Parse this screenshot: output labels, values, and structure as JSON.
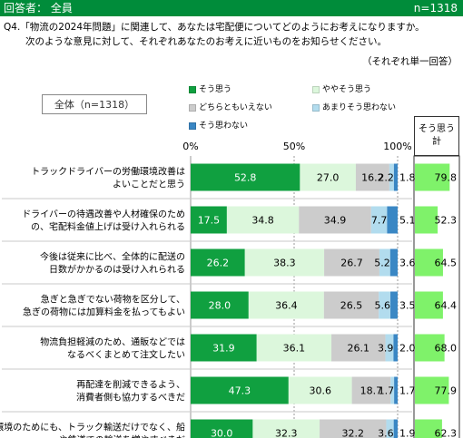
{
  "header": {
    "respondent": "回答者： 全員",
    "n": "n=1318"
  },
  "question": {
    "line1": "Q4.「物流の2024年問題」に関連して、あなたは宅配便についてどのようにお考えになりますか。",
    "line2": "次のような意見に対して、それぞれあなたのお考えに近いものをお知らせください。",
    "note": "（それぞれ単一回答）"
  },
  "base_label": "全体（n=1318）",
  "sum_header": [
    "そう思う",
    "計"
  ],
  "colors": {
    "s1": "#10a040",
    "s2": "#dcf7dc",
    "s3": "#cccccc",
    "s4": "#b2dcee",
    "s5": "#3a87c4",
    "sum": "#7ff26a",
    "header": "#008c3a"
  },
  "chart_data": {
    "type": "bar",
    "stacked": true,
    "orientation": "horizontal",
    "xlim": [
      0,
      100
    ],
    "x_ticks": [
      "0%",
      "50%",
      "100%"
    ],
    "categories": [
      [
        "トラックドライバーの労働環境改善は",
        "よいことだと思う"
      ],
      [
        "ドライバーの待遇改善や人材確保のため",
        "の、宅配料金値上げは受け入れられる"
      ],
      [
        "今後は従来に比べ、全体的に配送の",
        "日数がかかるのは受け入れられる"
      ],
      [
        "急ぎと急ぎでない荷物を区分して、",
        "急ぎの荷物には加算料金を払ってもよい"
      ],
      [
        "物流負担軽減のため、通販などでは",
        "なるべくまとめて注文したい"
      ],
      [
        "再配達を削減できるよう、",
        "消費者側も協力するべきだ"
      ],
      [
        "環境のためにも、トラック輸送だけでなく、船",
        "や鉄道での輸送を増やすべきだ"
      ]
    ],
    "series": [
      {
        "name": "そう思う",
        "values": [
          52.8,
          17.5,
          26.2,
          28.0,
          31.9,
          47.3,
          30.0
        ]
      },
      {
        "name": "ややそう思う",
        "values": [
          27.0,
          34.8,
          38.3,
          36.4,
          36.1,
          30.6,
          32.3
        ]
      },
      {
        "name": "どちらともいえない",
        "values": [
          16.2,
          34.9,
          26.7,
          26.5,
          26.1,
          18.7,
          32.2
        ]
      },
      {
        "name": "あまりそう思わない",
        "values": [
          2.2,
          7.7,
          5.2,
          5.6,
          3.9,
          1.7,
          3.6
        ]
      },
      {
        "name": "そう思わない",
        "values": [
          1.8,
          5.1,
          3.6,
          3.5,
          2.0,
          1.7,
          1.9
        ]
      }
    ],
    "labels": [
      [
        "52.8",
        "27.0",
        "16.2",
        "2.2",
        "1.8"
      ],
      [
        "17.5",
        "34.8",
        "34.9",
        "7.7",
        "5.1"
      ],
      [
        "26.2",
        "38.3",
        "26.7",
        "5.2",
        "3.6"
      ],
      [
        "28.0",
        "36.4",
        "26.5",
        "5.6",
        "3.5"
      ],
      [
        "31.9",
        "36.1",
        "26.1",
        "3.9",
        "2.0"
      ],
      [
        "47.3",
        "30.6",
        "18.7",
        "1.7",
        "1.7"
      ],
      [
        "30.0",
        "32.3",
        "32.2",
        "3.6",
        "1.9"
      ]
    ],
    "sum_values": [
      79.8,
      52.3,
      64.5,
      64.4,
      68.0,
      77.9,
      62.3
    ],
    "sum_labels": [
      "79.8",
      "52.3",
      "64.5",
      "64.4",
      "68.0",
      "77.9",
      "62.3"
    ]
  }
}
